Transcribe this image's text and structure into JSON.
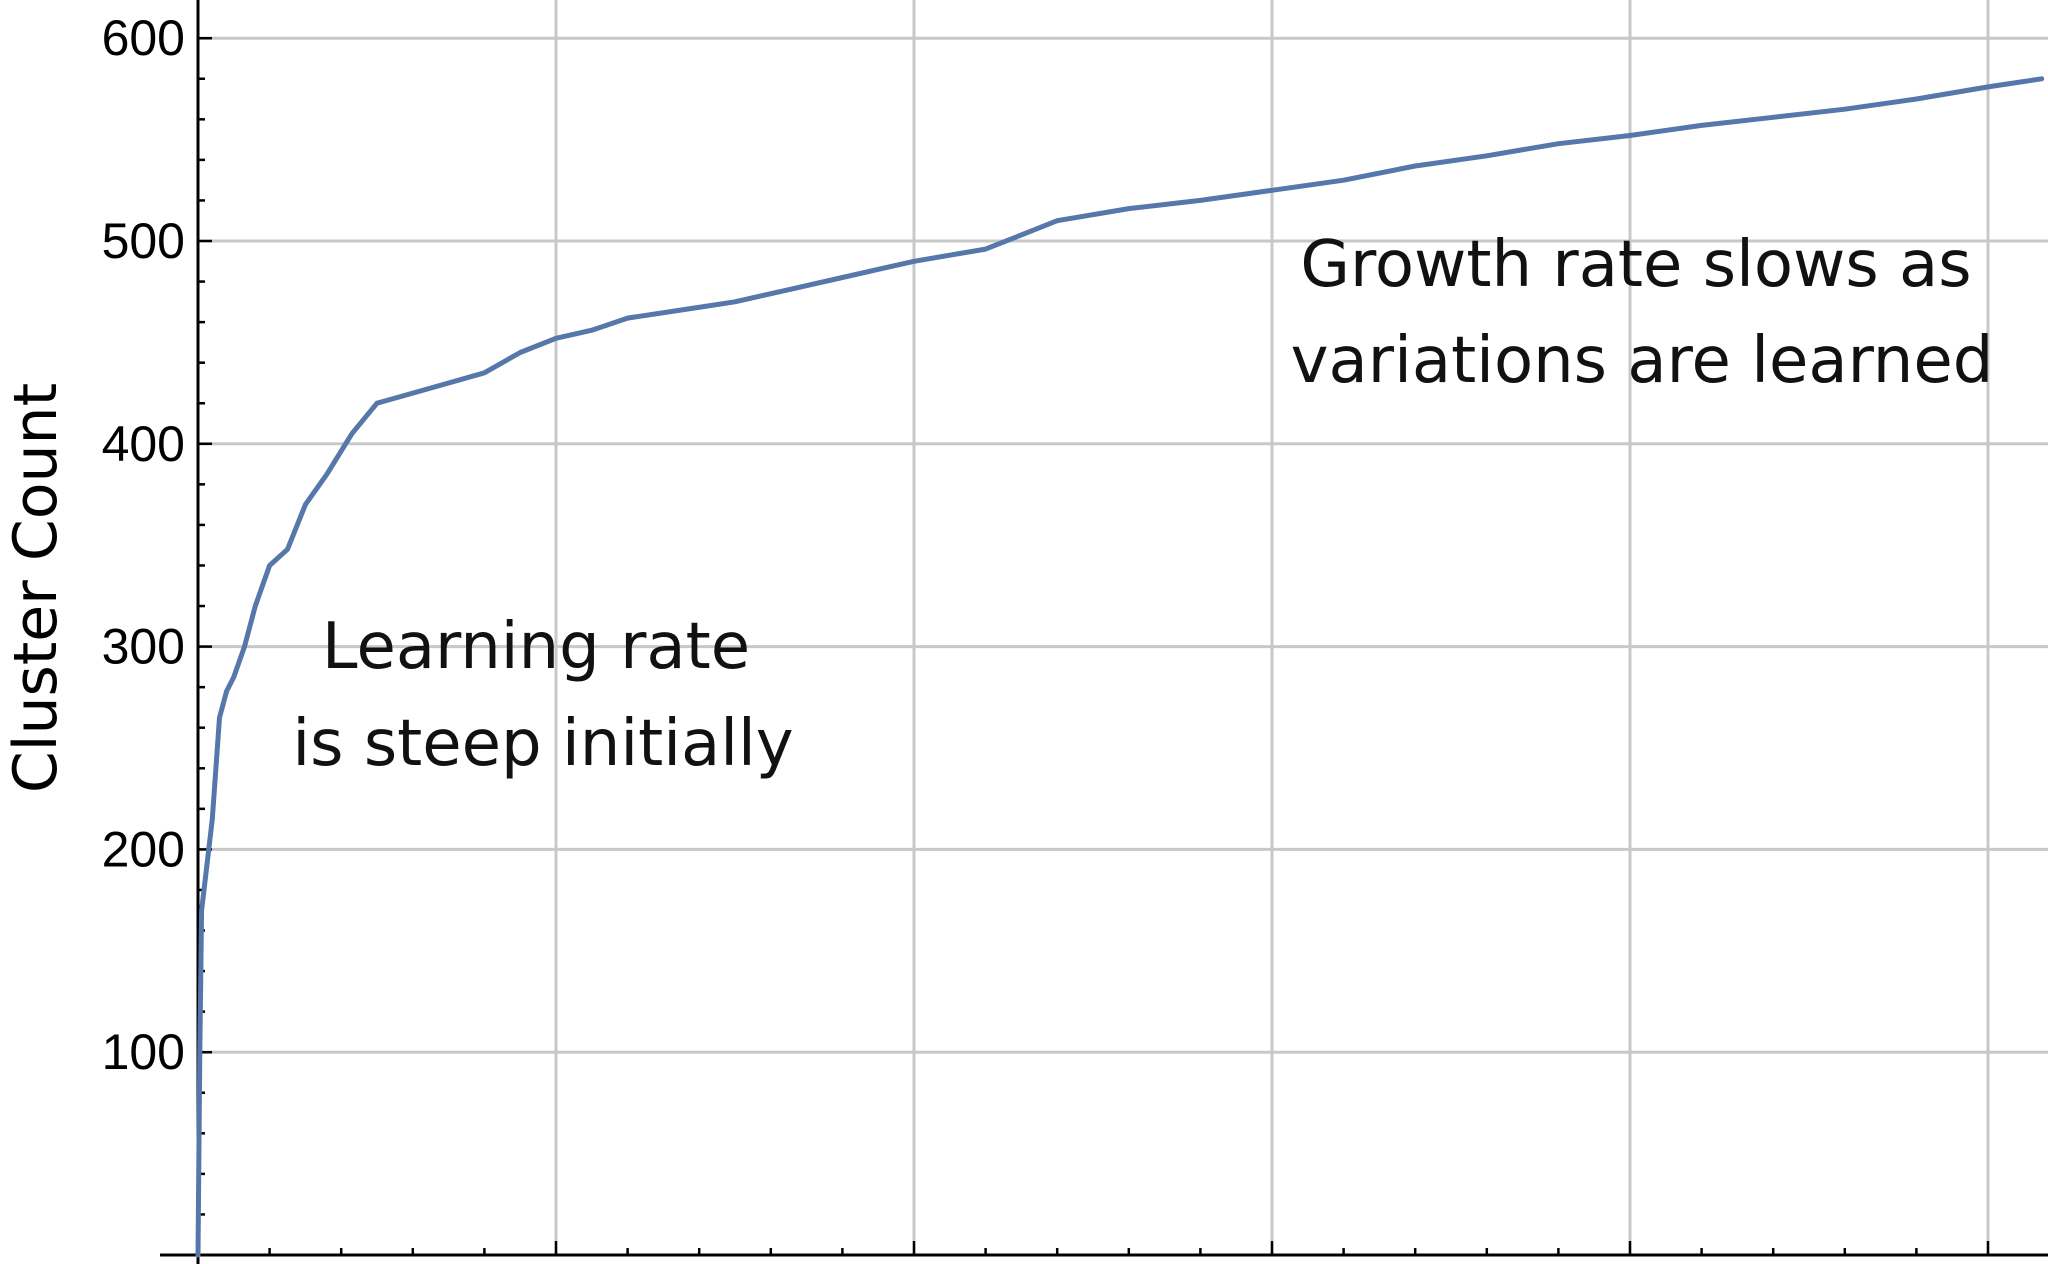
{
  "chart_data": {
    "type": "line",
    "title": "",
    "xlabel": "",
    "ylabel": "Cluster Count",
    "xlim": [
      0,
      5
    ],
    "ylim": [
      0,
      600
    ],
    "grid": true,
    "y_ticks": [
      100,
      200,
      300,
      400,
      500,
      600
    ],
    "x_gridlines": [
      1,
      2,
      3,
      4,
      5
    ],
    "series_color": "#5577aa",
    "series": [
      {
        "x": [
          0,
          0.005,
          0.01,
          0.02,
          0.04,
          0.06,
          0.08,
          0.1,
          0.13,
          0.16,
          0.2,
          0.25,
          0.3,
          0.36,
          0.43,
          0.5,
          0.6,
          0.7,
          0.8,
          0.9,
          1.0,
          1.1,
          1.2,
          1.35,
          1.5,
          1.65,
          1.8,
          2.0,
          2.2,
          2.4,
          2.6,
          2.8,
          3.0,
          3.2,
          3.4,
          3.6,
          3.8,
          4.0,
          4.2,
          4.4,
          4.6,
          4.8,
          5.0,
          5.15
        ],
        "y": [
          0,
          100,
          170,
          185,
          215,
          265,
          278,
          285,
          300,
          320,
          340,
          348,
          370,
          385,
          405,
          420,
          425,
          430,
          435,
          445,
          452,
          456,
          462,
          466,
          470,
          476,
          482,
          490,
          496,
          510,
          516,
          520,
          525,
          530,
          537,
          542,
          548,
          552,
          557,
          561,
          565,
          570,
          576,
          580
        ]
      }
    ],
    "annotations": [
      {
        "line1": "Learning rate",
        "line2": "is steep initially"
      },
      {
        "line1": "Growth rate slows as",
        "line2": "variations are learned"
      }
    ]
  }
}
